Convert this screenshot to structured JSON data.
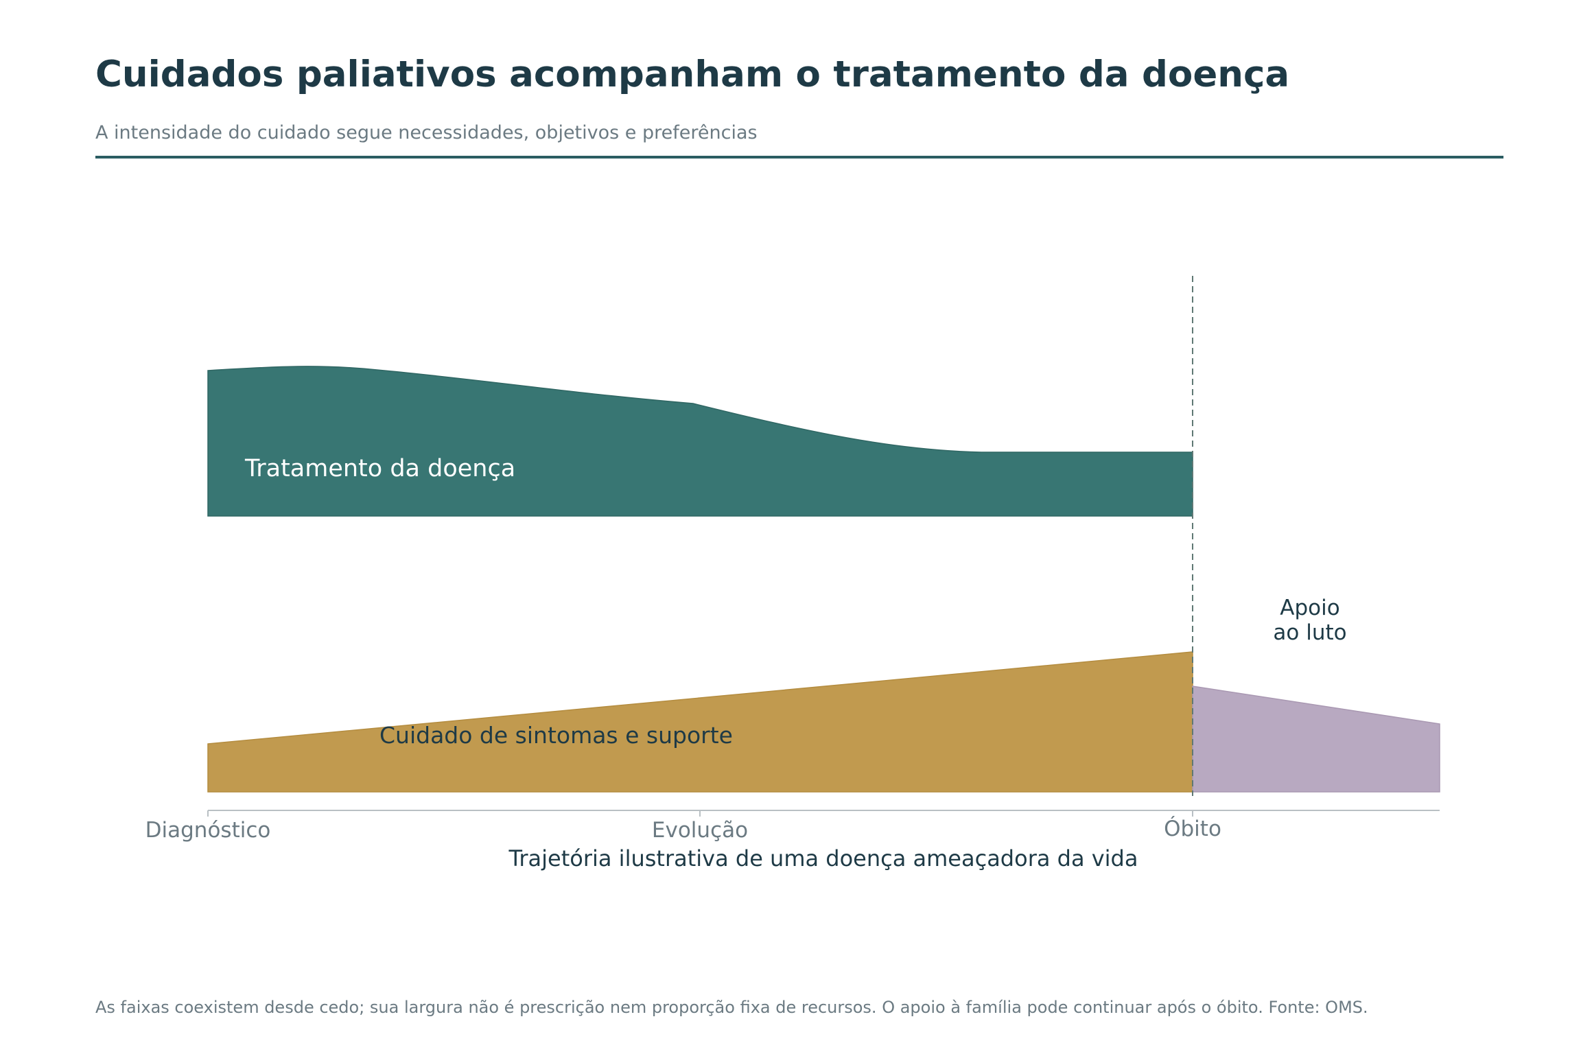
{
  "header": {
    "title": "Cuidados paliativos acompanham o tratamento da doença",
    "subtitle": "A intensidade do cuidado segue necessidades, objetivos e preferências"
  },
  "diagram": {
    "bands": {
      "treatment": {
        "label": "Tratamento da doença",
        "color": "#387673"
      },
      "palliative": {
        "label": "Cuidado de sintomas e suporte",
        "color": "#c19a4f"
      },
      "bereavement": {
        "label_line1": "Apoio",
        "label_line2": "ao luto",
        "color": "#b8a9c1"
      }
    },
    "x_axis": {
      "ticks": [
        "Diagnóstico",
        "Evolução",
        "Óbito"
      ],
      "label": "Trajetória ilustrativa de uma doença ameaçadora da vida"
    },
    "death_marker_color": "#5f7874"
  },
  "footnote": "As faixas coexistem desde cedo; sua largura não é prescrição nem proporção fixa de recursos. O apoio à família pode continuar após o óbito. Fonte: OMS."
}
